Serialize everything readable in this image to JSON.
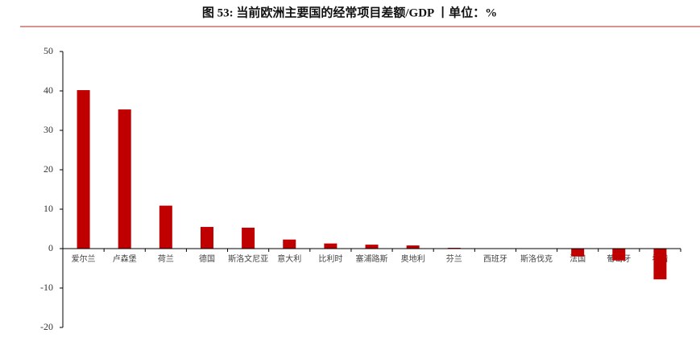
{
  "chart_data": {
    "type": "bar",
    "title": "图 53: 当前欧洲主要国的经常项目差额/GDP 丨单位：%",
    "categories": [
      "爱尔兰",
      "卢森堡",
      "荷兰",
      "德国",
      "斯洛文尼亚",
      "意大利",
      "比利时",
      "塞浦路斯",
      "奥地利",
      "芬兰",
      "西班牙",
      "斯洛伐克",
      "法国",
      "葡萄牙",
      "希腊"
    ],
    "values": [
      40.2,
      35.3,
      10.9,
      5.5,
      5.3,
      2.3,
      1.3,
      1.0,
      0.8,
      0.2,
      0.0,
      -0.1,
      -2.0,
      -3.0,
      -7.8
    ],
    "color": "#c00000",
    "ylim": [
      -20,
      50
    ],
    "yticks": [
      -20,
      -10,
      0,
      10,
      20,
      30,
      40,
      50
    ],
    "grid": false
  }
}
